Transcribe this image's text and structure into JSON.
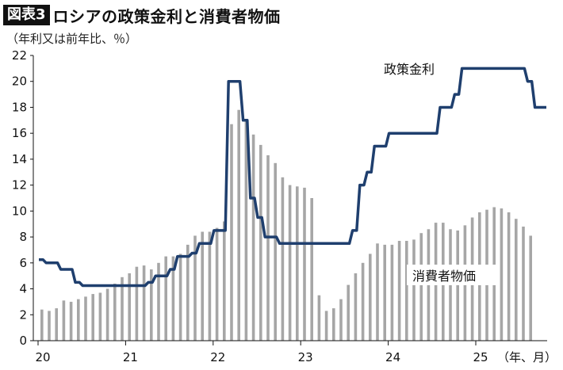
{
  "header": {
    "badge": "図表3",
    "title": "ロシアの政策金利と消費者物価"
  },
  "chart_data": {
    "type": "line+bar",
    "unit_label": "（年利又は前年比、％）",
    "x_axis_suffix": "（年、月）",
    "year_ticks": [
      "20",
      "21",
      "22",
      "23",
      "24",
      "25"
    ],
    "ylim": [
      0,
      22
    ],
    "y_ticks": [
      0,
      2,
      4,
      6,
      8,
      10,
      12,
      14,
      16,
      18,
      20,
      22
    ],
    "grid": false,
    "x_months": [
      "2020-01",
      "2020-02",
      "2020-03",
      "2020-04",
      "2020-05",
      "2020-06",
      "2020-07",
      "2020-08",
      "2020-09",
      "2020-10",
      "2020-11",
      "2020-12",
      "2021-01",
      "2021-02",
      "2021-03",
      "2021-04",
      "2021-05",
      "2021-06",
      "2021-07",
      "2021-08",
      "2021-09",
      "2021-10",
      "2021-11",
      "2021-12",
      "2022-01",
      "2022-02",
      "2022-03",
      "2022-04",
      "2022-05",
      "2022-06",
      "2022-07",
      "2022-08",
      "2022-09",
      "2022-10",
      "2022-11",
      "2022-12",
      "2023-01",
      "2023-02",
      "2023-03",
      "2023-04",
      "2023-05",
      "2023-06",
      "2023-07",
      "2023-08",
      "2023-09",
      "2023-10",
      "2023-11",
      "2023-12",
      "2024-01",
      "2024-02",
      "2024-03",
      "2024-04",
      "2024-05",
      "2024-06",
      "2024-07",
      "2024-08",
      "2024-09",
      "2024-10",
      "2024-11",
      "2024-12",
      "2025-01",
      "2025-02",
      "2025-03",
      "2025-04",
      "2025-05",
      "2025-06",
      "2025-07",
      "2025-08",
      "2025-09",
      "2025-10",
      "2025-11",
      "2025-12"
    ],
    "series": [
      {
        "name": "消費者物価",
        "kind": "bar",
        "color": "#a6a6a6",
        "values": [
          2.4,
          2.3,
          2.5,
          3.1,
          3.0,
          3.2,
          3.4,
          3.6,
          3.7,
          4.0,
          4.4,
          4.9,
          5.2,
          5.7,
          5.8,
          5.5,
          6.0,
          6.5,
          6.5,
          6.7,
          7.4,
          8.1,
          8.4,
          8.4,
          8.7,
          9.2,
          16.7,
          17.8,
          17.1,
          15.9,
          15.1,
          14.3,
          13.7,
          12.6,
          12.0,
          11.9,
          11.8,
          11.0,
          3.5,
          2.3,
          2.5,
          3.2,
          4.3,
          5.2,
          6.0,
          6.7,
          7.5,
          7.4,
          7.4,
          7.7,
          7.7,
          7.8,
          8.3,
          8.6,
          9.1,
          9.1,
          8.6,
          8.5,
          8.9,
          9.5,
          9.9,
          10.1,
          10.3,
          10.2,
          9.9,
          9.4,
          8.8,
          8.1
        ]
      },
      {
        "name": "政策金利",
        "kind": "line",
        "color": "#1f3f6e",
        "values": [
          6.25,
          6.0,
          6.0,
          5.5,
          5.5,
          4.5,
          4.25,
          4.25,
          4.25,
          4.25,
          4.25,
          4.25,
          4.25,
          4.25,
          4.25,
          4.5,
          5.0,
          5.0,
          5.5,
          6.5,
          6.5,
          6.75,
          7.5,
          7.5,
          8.5,
          8.5,
          20.0,
          20.0,
          17.0,
          11.0,
          9.5,
          8.0,
          8.0,
          7.5,
          7.5,
          7.5,
          7.5,
          7.5,
          7.5,
          7.5,
          7.5,
          7.5,
          7.5,
          8.5,
          12.0,
          13.0,
          15.0,
          15.0,
          16.0,
          16.0,
          16.0,
          16.0,
          16.0,
          16.0,
          16.0,
          18.0,
          18.0,
          19.0,
          21.0,
          21.0,
          21.0,
          21.0,
          21.0,
          21.0,
          21.0,
          21.0,
          21.0,
          20.0,
          18.0,
          18.0
        ]
      }
    ],
    "annotations": {
      "rate_label": "政策金利",
      "cpi_label": "消費者物価"
    }
  }
}
